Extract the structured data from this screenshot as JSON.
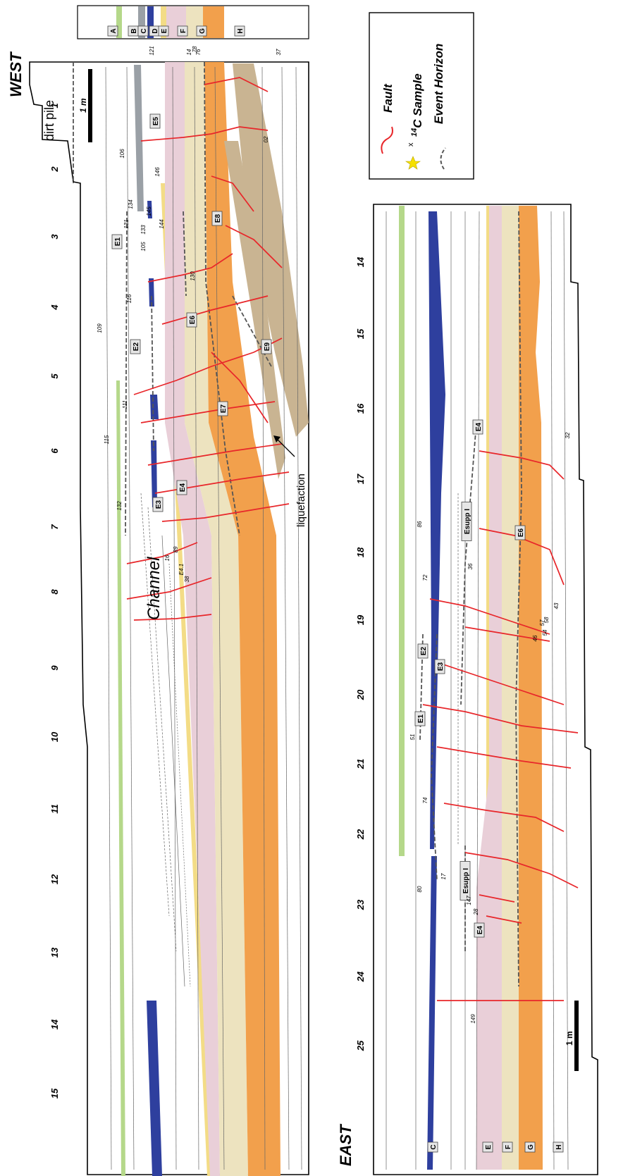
{
  "panels": {
    "west": {
      "direction": "WEST",
      "meter_ticks": [
        "1",
        "2",
        "3",
        "4",
        "5",
        "6",
        "7",
        "8",
        "9",
        "10",
        "11",
        "12",
        "13",
        "14",
        "15"
      ],
      "notes": {
        "dirt_pile": "dirt pile",
        "liquefaction": "liquefaction",
        "channel": "Channel"
      },
      "scale_bar": "1 m",
      "events": [
        "E1",
        "E2",
        "E3",
        "E4",
        "E5",
        "E6",
        "E7",
        "E8",
        "E9"
      ],
      "samples": [
        "121",
        "14",
        "78",
        "76",
        "37",
        "02",
        "106",
        "146",
        "131",
        "134",
        "133",
        "145",
        "144",
        "105",
        "130",
        "116",
        "109",
        "111",
        "115",
        "132",
        "16",
        "89",
        "38",
        "E4.1"
      ]
    },
    "east": {
      "direction": "EAST",
      "meter_ticks": [
        "14",
        "15",
        "16",
        "17",
        "18",
        "19",
        "20",
        "21",
        "22",
        "23",
        "24",
        "25"
      ],
      "scale_bar": "1 m",
      "events": [
        "E4",
        "E6",
        "Esupp I",
        "E2",
        "E3",
        "E1",
        "Esupp I",
        "E4"
      ],
      "unit_labels": [
        "C",
        "E",
        "F",
        "G",
        "H"
      ],
      "samples": [
        "32",
        "86",
        "72",
        "36",
        "43",
        "57",
        "58",
        "54",
        "46",
        "51",
        "74",
        "80",
        "17",
        "147",
        "28",
        "149"
      ]
    }
  },
  "units_key": {
    "labels": [
      "A",
      "B",
      "C",
      "D",
      "E",
      "F",
      "G",
      "H"
    ],
    "colors": [
      "#b5d88a",
      "#9aa0a6",
      "#2e3f9e",
      "#f3dc86",
      "#e9cfd8",
      "#ede3bf",
      "#f2a04c",
      "#ffffff"
    ]
  },
  "legend": {
    "fault": "Fault",
    "sample_prefix": "14",
    "sample_suffix": "C Sample",
    "event_horizon": "Event Horizon",
    "sample_marker": "x"
  },
  "colors": {
    "fault": "#e8262a",
    "unit_a": "#b5d88a",
    "unit_b": "#9aa0a6",
    "unit_c": "#2e3f9e",
    "unit_d": "#f3dc86",
    "unit_e": "#e9cfd8",
    "unit_f": "#ede3bf",
    "unit_g": "#f2a04c",
    "unit_brown": "#c9b492",
    "sample_star": "#f5e000",
    "event_line": "#555555"
  },
  "icons": [
    "fault-line-icon",
    "sample-star-icon",
    "event-horizon-icon"
  ]
}
